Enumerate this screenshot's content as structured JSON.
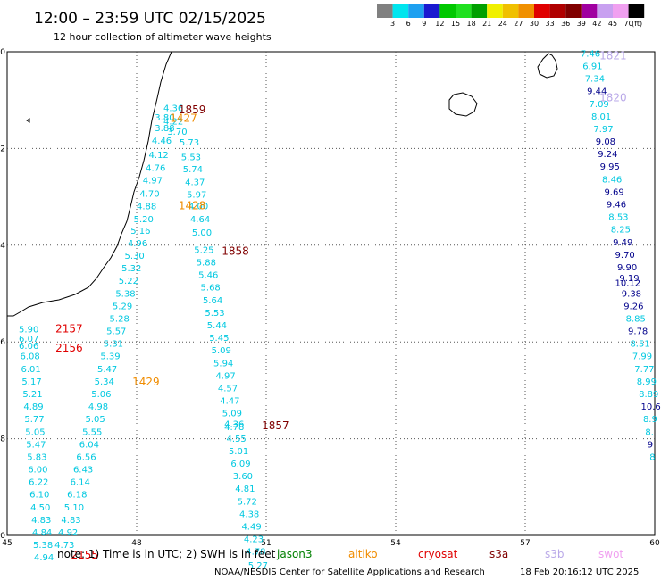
{
  "header": {
    "title": "12:00 – 23:59 UTC 02/15/2025",
    "subtitle": "12 hour collection of altimeter wave heights"
  },
  "legend": {
    "unit": "(ft)",
    "items": [
      {
        "label": "3",
        "color": "#808080"
      },
      {
        "label": "6",
        "color": "#00e5ee"
      },
      {
        "label": "9",
        "color": "#1ea0f0"
      },
      {
        "label": "12",
        "color": "#1a1ad0"
      },
      {
        "label": "15",
        "color": "#00c800"
      },
      {
        "label": "18",
        "color": "#20e020"
      },
      {
        "label": "21",
        "color": "#00a000"
      },
      {
        "label": "24",
        "color": "#f0f000"
      },
      {
        "label": "27",
        "color": "#f0c000"
      },
      {
        "label": "30",
        "color": "#f09000"
      },
      {
        "label": "33",
        "color": "#e00000"
      },
      {
        "label": "36",
        "color": "#b00000"
      },
      {
        "label": "39",
        "color": "#800000"
      },
      {
        "label": "42",
        "color": "#a000a0"
      },
      {
        "label": "45",
        "color": "#c8a0f0"
      },
      {
        "label": "70",
        "color": "#f0a0f0"
      },
      {
        "label": "",
        "color": "#000000"
      }
    ]
  },
  "axes": {
    "lon_range": [
      45,
      60
    ],
    "lat_range": [
      -30,
      -20
    ],
    "x_ticks": [
      "45",
      "48",
      "51",
      "54",
      "57",
      "60"
    ],
    "y_ticks": [
      "-20",
      "-22",
      "-24",
      "-26",
      "-28",
      "-30"
    ]
  },
  "colors": {
    "cyan": "#00c8e0",
    "navy": "#00008b",
    "lavender": "#b9a8e8",
    "orange": "#f08c00",
    "red": "#e00000",
    "darkred": "#800000",
    "green": "#008000",
    "pink": "#f0a0f0"
  },
  "wave_heights": [
    {
      "v": "4.36",
      "lon": 48.62,
      "lat": -21.23,
      "c": "cyan"
    },
    {
      "v": "3.80",
      "lon": 48.42,
      "lat": -21.42,
      "c": "cyan"
    },
    {
      "v": "4.22",
      "lon": 48.62,
      "lat": -21.5,
      "c": "cyan"
    },
    {
      "v": "3.88",
      "lon": 48.42,
      "lat": -21.64,
      "c": "cyan"
    },
    {
      "v": "3.70",
      "lon": 48.71,
      "lat": -21.72,
      "c": "cyan"
    },
    {
      "v": "4.46",
      "lon": 48.35,
      "lat": -21.9,
      "c": "cyan"
    },
    {
      "v": "5.73",
      "lon": 48.99,
      "lat": -21.94,
      "c": "cyan"
    },
    {
      "v": "4.12",
      "lon": 48.28,
      "lat": -22.2,
      "c": "cyan"
    },
    {
      "v": "5.53",
      "lon": 49.03,
      "lat": -22.24,
      "c": "cyan"
    },
    {
      "v": "4.76",
      "lon": 48.21,
      "lat": -22.46,
      "c": "cyan"
    },
    {
      "v": "5.74",
      "lon": 49.07,
      "lat": -22.49,
      "c": "cyan"
    },
    {
      "v": "4.97",
      "lon": 48.14,
      "lat": -22.72,
      "c": "cyan"
    },
    {
      "v": "4.37",
      "lon": 49.12,
      "lat": -22.76,
      "c": "cyan"
    },
    {
      "v": "4.70",
      "lon": 48.07,
      "lat": -23.0,
      "c": "cyan"
    },
    {
      "v": "5.97",
      "lon": 49.16,
      "lat": -23.02,
      "c": "cyan"
    },
    {
      "v": "4.88",
      "lon": 48.0,
      "lat": -23.26,
      "c": "cyan"
    },
    {
      "v": "4.00",
      "lon": 49.2,
      "lat": -23.26,
      "c": "cyan"
    },
    {
      "v": "5.20",
      "lon": 47.93,
      "lat": -23.52,
      "c": "cyan"
    },
    {
      "v": "4.64",
      "lon": 49.24,
      "lat": -23.52,
      "c": "cyan"
    },
    {
      "v": "5.16",
      "lon": 47.86,
      "lat": -23.76,
      "c": "cyan"
    },
    {
      "v": "5.00",
      "lon": 49.28,
      "lat": -23.8,
      "c": "cyan"
    },
    {
      "v": "4.96",
      "lon": 47.79,
      "lat": -24.02,
      "c": "cyan"
    },
    {
      "v": "5.25",
      "lon": 49.33,
      "lat": -24.16,
      "c": "cyan"
    },
    {
      "v": "5.30",
      "lon": 47.72,
      "lat": -24.28,
      "c": "cyan"
    },
    {
      "v": "5.88",
      "lon": 49.38,
      "lat": -24.42,
      "c": "cyan"
    },
    {
      "v": "5.32",
      "lon": 47.65,
      "lat": -24.54,
      "c": "cyan"
    },
    {
      "v": "5.46",
      "lon": 49.43,
      "lat": -24.68,
      "c": "cyan"
    },
    {
      "v": "5.22",
      "lon": 47.58,
      "lat": -24.8,
      "c": "cyan"
    },
    {
      "v": "5.68",
      "lon": 49.48,
      "lat": -24.94,
      "c": "cyan"
    },
    {
      "v": "5.38",
      "lon": 47.51,
      "lat": -25.06,
      "c": "cyan"
    },
    {
      "v": "5.64",
      "lon": 49.53,
      "lat": -25.2,
      "c": "cyan"
    },
    {
      "v": "5.29",
      "lon": 47.44,
      "lat": -25.32,
      "c": "cyan"
    },
    {
      "v": "5.53",
      "lon": 49.58,
      "lat": -25.46,
      "c": "cyan"
    },
    {
      "v": "5.28",
      "lon": 47.37,
      "lat": -25.58,
      "c": "cyan"
    },
    {
      "v": "5.44",
      "lon": 49.63,
      "lat": -25.72,
      "c": "cyan"
    },
    {
      "v": "5.57",
      "lon": 47.3,
      "lat": -25.84,
      "c": "cyan"
    },
    {
      "v": "5.45",
      "lon": 49.68,
      "lat": -25.98,
      "c": "cyan"
    },
    {
      "v": "5.31",
      "lon": 47.23,
      "lat": -26.1,
      "c": "cyan"
    },
    {
      "v": "5.09",
      "lon": 49.73,
      "lat": -26.24,
      "c": "cyan"
    },
    {
      "v": "5.39",
      "lon": 47.16,
      "lat": -26.36,
      "c": "cyan"
    },
    {
      "v": "5.94",
      "lon": 49.78,
      "lat": -26.5,
      "c": "cyan"
    },
    {
      "v": "5.47",
      "lon": 47.09,
      "lat": -26.62,
      "c": "cyan"
    },
    {
      "v": "4.97",
      "lon": 49.83,
      "lat": -26.76,
      "c": "cyan"
    },
    {
      "v": "5.34",
      "lon": 47.02,
      "lat": -26.88,
      "c": "cyan"
    },
    {
      "v": "4.57",
      "lon": 49.88,
      "lat": -27.02,
      "c": "cyan"
    },
    {
      "v": "5.06",
      "lon": 46.95,
      "lat": -27.14,
      "c": "cyan"
    },
    {
      "v": "4.47",
      "lon": 49.93,
      "lat": -27.28,
      "c": "cyan"
    },
    {
      "v": "4.98",
      "lon": 46.88,
      "lat": -27.4,
      "c": "cyan"
    },
    {
      "v": "5.09",
      "lon": 49.98,
      "lat": -27.54,
      "c": "cyan"
    },
    {
      "v": "5.05",
      "lon": 46.81,
      "lat": -27.66,
      "c": "cyan"
    },
    {
      "v": "4.36",
      "lon": 50.03,
      "lat": -27.76,
      "c": "cyan"
    },
    {
      "v": "4.78",
      "lon": 50.03,
      "lat": -27.82,
      "c": "cyan"
    },
    {
      "v": "5.55",
      "lon": 46.74,
      "lat": -27.92,
      "c": "cyan"
    },
    {
      "v": "4.55",
      "lon": 50.08,
      "lat": -28.06,
      "c": "cyan"
    },
    {
      "v": "6.04",
      "lon": 46.67,
      "lat": -28.18,
      "c": "cyan"
    },
    {
      "v": "5.01",
      "lon": 50.13,
      "lat": -28.32,
      "c": "cyan"
    },
    {
      "v": "6.56",
      "lon": 46.6,
      "lat": -28.44,
      "c": "cyan"
    },
    {
      "v": "6.09",
      "lon": 50.18,
      "lat": -28.58,
      "c": "cyan"
    },
    {
      "v": "6.43",
      "lon": 46.53,
      "lat": -28.7,
      "c": "cyan"
    },
    {
      "v": "3.60",
      "lon": 50.23,
      "lat": -28.84,
      "c": "cyan"
    },
    {
      "v": "6.14",
      "lon": 46.46,
      "lat": -28.96,
      "c": "cyan"
    },
    {
      "v": "4.81",
      "lon": 50.28,
      "lat": -29.1,
      "c": "cyan"
    },
    {
      "v": "6.18",
      "lon": 46.39,
      "lat": -29.22,
      "c": "cyan"
    },
    {
      "v": "5.72",
      "lon": 50.33,
      "lat": -29.36,
      "c": "cyan"
    },
    {
      "v": "5.10",
      "lon": 46.32,
      "lat": -29.48,
      "c": "cyan"
    },
    {
      "v": "4.38",
      "lon": 50.38,
      "lat": -29.62,
      "c": "cyan"
    },
    {
      "v": "4.83",
      "lon": 46.25,
      "lat": -29.74,
      "c": "cyan"
    },
    {
      "v": "4.49",
      "lon": 50.43,
      "lat": -29.88,
      "c": "cyan"
    },
    {
      "v": "4.92",
      "lon": 46.18,
      "lat": -30.0,
      "c": "cyan"
    },
    {
      "v": "4.23",
      "lon": 50.48,
      "lat": -30.14,
      "c": "cyan"
    },
    {
      "v": "4.73",
      "lon": 46.1,
      "lat": -30.26,
      "c": "cyan"
    },
    {
      "v": "4.78",
      "lon": 50.53,
      "lat": -30.4,
      "c": "cyan"
    },
    {
      "v": "5.27",
      "lon": 50.58,
      "lat": -30.68,
      "c": "cyan"
    },
    {
      "v": "5.90",
      "lon": 45.27,
      "lat": -25.8,
      "c": "cyan"
    },
    {
      "v": "6.07",
      "lon": 45.27,
      "lat": -26.0,
      "c": "cyan"
    },
    {
      "v": "6.06",
      "lon": 45.27,
      "lat": -26.14,
      "c": "cyan"
    },
    {
      "v": "6.08",
      "lon": 45.3,
      "lat": -26.36,
      "c": "cyan"
    },
    {
      "v": "6.01",
      "lon": 45.32,
      "lat": -26.62,
      "c": "cyan"
    },
    {
      "v": "5.17",
      "lon": 45.34,
      "lat": -26.88,
      "c": "cyan"
    },
    {
      "v": "5.21",
      "lon": 45.36,
      "lat": -27.14,
      "c": "cyan"
    },
    {
      "v": "4.89",
      "lon": 45.38,
      "lat": -27.4,
      "c": "cyan"
    },
    {
      "v": "5.77",
      "lon": 45.4,
      "lat": -27.66,
      "c": "cyan"
    },
    {
      "v": "5.05",
      "lon": 45.42,
      "lat": -27.92,
      "c": "cyan"
    },
    {
      "v": "5.47",
      "lon": 45.44,
      "lat": -28.18,
      "c": "cyan"
    },
    {
      "v": "5.83",
      "lon": 45.46,
      "lat": -28.44,
      "c": "cyan"
    },
    {
      "v": "6.00",
      "lon": 45.48,
      "lat": -28.7,
      "c": "cyan"
    },
    {
      "v": "6.22",
      "lon": 45.5,
      "lat": -28.96,
      "c": "cyan"
    },
    {
      "v": "6.10",
      "lon": 45.52,
      "lat": -29.22,
      "c": "cyan"
    },
    {
      "v": "4.50",
      "lon": 45.54,
      "lat": -29.48,
      "c": "cyan"
    },
    {
      "v": "4.83",
      "lon": 45.56,
      "lat": -29.74,
      "c": "cyan"
    },
    {
      "v": "4.84",
      "lon": 45.58,
      "lat": -30.0,
      "c": "cyan"
    },
    {
      "v": "5.38",
      "lon": 45.6,
      "lat": -30.26,
      "c": "cyan"
    },
    {
      "v": "4.94",
      "lon": 45.62,
      "lat": -30.52,
      "c": "cyan"
    },
    {
      "v": "7.46",
      "lon": 58.28,
      "lat": -20.1,
      "c": "cyan"
    },
    {
      "v": "6.91",
      "lon": 58.33,
      "lat": -20.36,
      "c": "cyan"
    },
    {
      "v": "7.34",
      "lon": 58.38,
      "lat": -20.62,
      "c": "cyan"
    },
    {
      "v": "9.44",
      "lon": 58.43,
      "lat": -20.88,
      "c": "navy"
    },
    {
      "v": "7.09",
      "lon": 58.48,
      "lat": -21.14,
      "c": "cyan"
    },
    {
      "v": "8.01",
      "lon": 58.53,
      "lat": -21.4,
      "c": "cyan"
    },
    {
      "v": "7.97",
      "lon": 58.58,
      "lat": -21.66,
      "c": "cyan"
    },
    {
      "v": "9.08",
      "lon": 58.63,
      "lat": -21.92,
      "c": "navy"
    },
    {
      "v": "9.24",
      "lon": 58.68,
      "lat": -22.18,
      "c": "navy"
    },
    {
      "v": "9.95",
      "lon": 58.73,
      "lat": -22.44,
      "c": "navy"
    },
    {
      "v": "8.46",
      "lon": 58.78,
      "lat": -22.7,
      "c": "cyan"
    },
    {
      "v": "9.69",
      "lon": 58.83,
      "lat": -22.96,
      "c": "navy"
    },
    {
      "v": "9.46",
      "lon": 58.88,
      "lat": -23.22,
      "c": "navy"
    },
    {
      "v": "8.53",
      "lon": 58.93,
      "lat": -23.48,
      "c": "cyan"
    },
    {
      "v": "8.25",
      "lon": 58.98,
      "lat": -23.74,
      "c": "cyan"
    },
    {
      "v": "9.49",
      "lon": 59.03,
      "lat": -24.0,
      "c": "navy"
    },
    {
      "v": "9.70",
      "lon": 59.08,
      "lat": -24.26,
      "c": "navy"
    },
    {
      "v": "9.90",
      "lon": 59.13,
      "lat": -24.52,
      "c": "navy"
    },
    {
      "v": "9.19",
      "lon": 59.18,
      "lat": -24.74,
      "c": "navy"
    },
    {
      "v": "10.12",
      "lon": 59.08,
      "lat": -24.84,
      "c": "navy"
    },
    {
      "v": "9.38",
      "lon": 59.23,
      "lat": -25.06,
      "c": "navy"
    },
    {
      "v": "9.26",
      "lon": 59.28,
      "lat": -25.32,
      "c": "navy"
    },
    {
      "v": "8.85",
      "lon": 59.33,
      "lat": -25.58,
      "c": "cyan"
    },
    {
      "v": "9.78",
      "lon": 59.38,
      "lat": -25.84,
      "c": "navy"
    },
    {
      "v": "8.51",
      "lon": 59.43,
      "lat": -26.1,
      "c": "cyan"
    },
    {
      "v": "7.99",
      "lon": 59.48,
      "lat": -26.36,
      "c": "cyan"
    },
    {
      "v": "7.77",
      "lon": 59.53,
      "lat": -26.62,
      "c": "cyan"
    },
    {
      "v": "8.99",
      "lon": 59.58,
      "lat": -26.88,
      "c": "cyan"
    },
    {
      "v": "8.89",
      "lon": 59.63,
      "lat": -27.14,
      "c": "cyan"
    },
    {
      "v": "10.6",
      "lon": 59.68,
      "lat": -27.4,
      "c": "navy"
    },
    {
      "v": "8.9",
      "lon": 59.73,
      "lat": -27.66,
      "c": "cyan"
    },
    {
      "v": "8.",
      "lon": 59.78,
      "lat": -27.92,
      "c": "cyan"
    },
    {
      "v": "9",
      "lon": 59.83,
      "lat": -28.18,
      "c": "navy"
    },
    {
      "v": "8",
      "lon": 59.88,
      "lat": -28.44,
      "c": "cyan"
    }
  ],
  "time_labels": [
    {
      "v": "1859",
      "lon": 48.97,
      "lat": -21.27,
      "c": "darkred"
    },
    {
      "v": "1427",
      "lon": 48.77,
      "lat": -21.45,
      "c": "orange"
    },
    {
      "v": "1428",
      "lon": 48.97,
      "lat": -23.26,
      "c": "orange"
    },
    {
      "v": "1858",
      "lon": 49.97,
      "lat": -24.2,
      "c": "darkred"
    },
    {
      "v": "1429",
      "lon": 47.9,
      "lat": -26.9,
      "c": "orange"
    },
    {
      "v": "1857",
      "lon": 50.9,
      "lat": -27.8,
      "c": "darkred"
    },
    {
      "v": "2157",
      "lon": 46.12,
      "lat": -25.8,
      "c": "red"
    },
    {
      "v": "2156",
      "lon": 46.12,
      "lat": -26.2,
      "c": "red"
    },
    {
      "v": "2155",
      "lon": 46.48,
      "lat": -30.48,
      "c": "red"
    },
    {
      "v": "1821",
      "lon": 58.72,
      "lat": -20.16,
      "c": "lavender"
    },
    {
      "v": "1820",
      "lon": 58.72,
      "lat": -21.02,
      "c": "lavender"
    }
  ],
  "footer": {
    "note": "note:  1) Time is in UTC;  2) SWH is in feet",
    "satellites": [
      {
        "name": "jason3",
        "color": "#008000"
      },
      {
        "name": "altiko",
        "color": "#f08c00"
      },
      {
        "name": "cryosat",
        "color": "#e00000"
      },
      {
        "name": "s3a",
        "color": "#800000"
      },
      {
        "name": "s3b",
        "color": "#b9a8e8"
      },
      {
        "name": "swot",
        "color": "#f0a0f0"
      }
    ],
    "credit": "NOAA/NESDIS Center for Satellite Applications and Research",
    "timestamp": "18 Feb 20:16:12 UTC 2025"
  }
}
